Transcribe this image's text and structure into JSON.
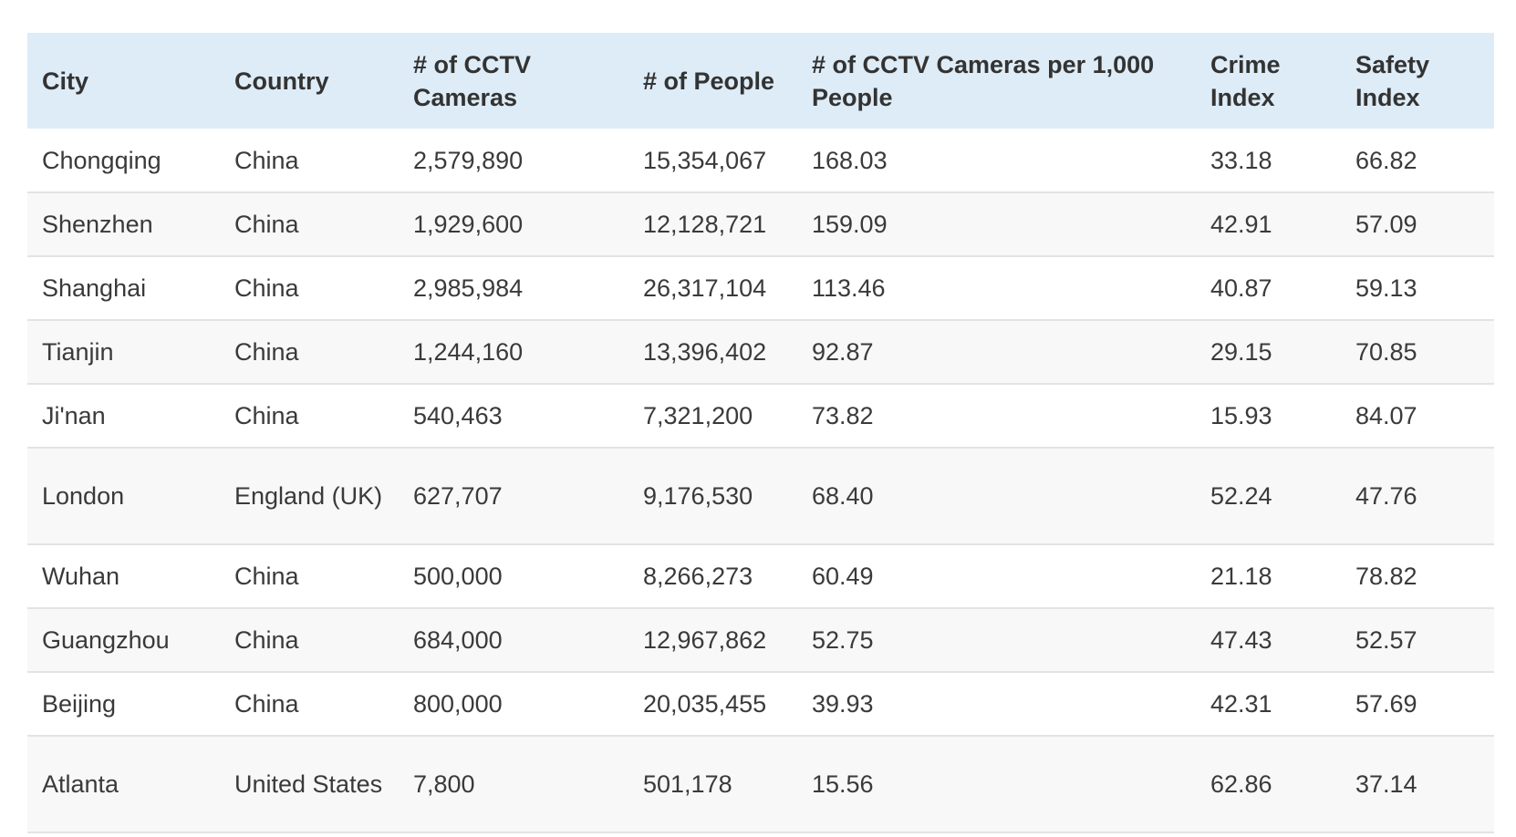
{
  "table": {
    "headers": [
      "City",
      "Country",
      "# of CCTV Cameras",
      "# of People",
      "# of CCTV Cameras per 1,000 People",
      "Crime Index",
      "Safety Index"
    ],
    "rows": [
      [
        "Chongqing",
        "China",
        "2,579,890",
        "15,354,067",
        "168.03",
        "33.18",
        "66.82"
      ],
      [
        "Shenzhen",
        "China",
        "1,929,600",
        "12,128,721",
        "159.09",
        "42.91",
        "57.09"
      ],
      [
        "Shanghai",
        "China",
        "2,985,984",
        "26,317,104",
        "113.46",
        "40.87",
        "59.13"
      ],
      [
        "Tianjin",
        "China",
        "1,244,160",
        "13,396,402",
        "92.87",
        "29.15",
        "70.85"
      ],
      [
        "Ji'nan",
        "China",
        "540,463",
        "7,321,200",
        "73.82",
        "15.93",
        "84.07"
      ],
      [
        "London",
        "England (UK)",
        "627,707",
        "9,176,530",
        "68.40",
        "52.24",
        "47.76"
      ],
      [
        "Wuhan",
        "China",
        "500,000",
        "8,266,273",
        "60.49",
        "21.18",
        "78.82"
      ],
      [
        "Guangzhou",
        "China",
        "684,000",
        "12,967,862",
        "52.75",
        "47.43",
        "52.57"
      ],
      [
        "Beijing",
        "China",
        "800,000",
        "20,035,455",
        "39.93",
        "42.31",
        "57.69"
      ],
      [
        "Atlanta",
        "United States",
        "7,800",
        "501,178",
        "15.56",
        "62.86",
        "37.14"
      ]
    ]
  },
  "colors": {
    "header_bg": "#deecf7",
    "row_alt_bg": "#f8f8f8",
    "border": "#e3e3e3"
  }
}
